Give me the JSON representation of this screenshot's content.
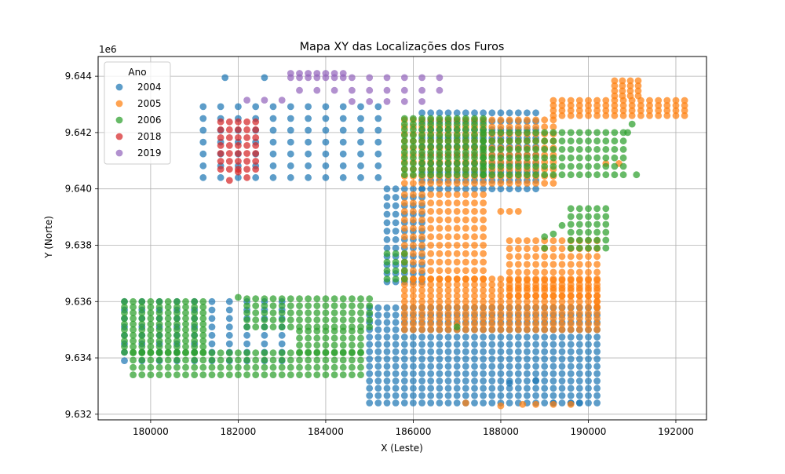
{
  "chart_data": {
    "type": "scatter",
    "title": "Mapa XY das Localizações dos Furos",
    "xlabel": "X (Leste)",
    "ylabel": "Y (Norte)",
    "y_offset_text": "1e6",
    "xlim": [
      178800,
      192700
    ],
    "ylim": [
      9631800,
      9644700
    ],
    "x_ticks": [
      180000,
      182000,
      184000,
      186000,
      188000,
      190000,
      192000
    ],
    "x_tick_labels": [
      "180000",
      "182000",
      "184000",
      "186000",
      "188000",
      "190000",
      "192000"
    ],
    "y_ticks": [
      9632000,
      9634000,
      9636000,
      9638000,
      9640000,
      9642000,
      9644000
    ],
    "y_tick_labels": [
      "9.632",
      "9.634",
      "9.636",
      "9.638",
      "9.640",
      "9.642",
      "9.644"
    ],
    "grid": true,
    "legend": {
      "title": "Ano",
      "placement": "upper-left"
    },
    "series": [
      {
        "name": "2004",
        "color": "#1f77b4",
        "regions": [
          {
            "x": [
              181200,
              185200
            ],
            "y": [
              9640400,
              9643200
            ],
            "dx": 400,
            "dy": 420
          },
          {
            "x": [
              185400,
              186200
            ],
            "y": [
              9636700,
              9640000
            ],
            "dx": 200,
            "dy": 300
          },
          {
            "x": [
              185000,
              190200
            ],
            "y": [
              9632400,
              9636000
            ],
            "dx": 200,
            "dy": 260
          },
          {
            "x": [
              186200,
              188800
            ],
            "y": [
              9640000,
              9642800
            ],
            "dx": 200,
            "dy": 300
          },
          {
            "x": [
              179400,
              183200
            ],
            "y": [
              9633900,
              9636000
            ],
            "dx": 400,
            "dy": 300
          }
        ],
        "points": [
          [
            181700,
            9643950
          ],
          [
            182600,
            9643950
          ],
          [
            188200,
            9633100
          ],
          [
            188800,
            9633200
          ],
          [
            189200,
            9632400
          ],
          [
            189600,
            9632400
          ],
          [
            189800,
            9632400
          ]
        ]
      },
      {
        "name": "2005",
        "color": "#ff7f0e",
        "regions": [
          {
            "x": [
              185800,
              190300
            ],
            "y": [
              9635000,
              9636800
            ],
            "dx": 200,
            "dy": 200
          },
          {
            "x": [
              185800,
              187600
            ],
            "y": [
              9636800,
              9640000
            ],
            "dx": 200,
            "dy": 300
          },
          {
            "x": [
              188200,
              190200
            ],
            "y": [
              9636200,
              9638200
            ],
            "dx": 200,
            "dy": 280
          },
          {
            "x": [
              185800,
              189200
            ],
            "y": [
              9640200,
              9642600
            ],
            "dx": 200,
            "dy": 250
          },
          {
            "x": [
              189200,
              192200
            ],
            "y": [
              9642600,
              9643300
            ],
            "dx": 200,
            "dy": 180
          },
          {
            "x": [
              190600,
              191300
            ],
            "y": [
              9643300,
              9644000
            ],
            "dx": 180,
            "dy": 180
          }
        ],
        "points": [
          [
            187200,
            9632400
          ],
          [
            188000,
            9632300
          ],
          [
            188500,
            9632350
          ],
          [
            188800,
            9632350
          ],
          [
            189200,
            9632350
          ],
          [
            189600,
            9632350
          ],
          [
            190200,
            9636000
          ],
          [
            190200,
            9635800
          ],
          [
            188000,
            9639200
          ],
          [
            188200,
            9639200
          ],
          [
            188400,
            9639200
          ],
          [
            190400,
            9640900
          ],
          [
            190700,
            9640900
          ]
        ]
      },
      {
        "name": "2006",
        "color": "#2ca02c",
        "regions": [
          {
            "x": [
              179400,
              181200
            ],
            "y": [
              9634200,
              9636100
            ],
            "dx": 200,
            "dy": 200
          },
          {
            "x": [
              179600,
              184800
            ],
            "y": [
              9633400,
              9634200
            ],
            "dx": 200,
            "dy": 260
          },
          {
            "x": [
              182200,
              185000
            ],
            "y": [
              9635100,
              9636100
            ],
            "dx": 200,
            "dy": 250
          },
          {
            "x": [
              183400,
              184800
            ],
            "y": [
              9634200,
              9635100
            ],
            "dx": 200,
            "dy": 250
          },
          {
            "x": [
              185800,
              187600
            ],
            "y": [
              9640500,
              9642500
            ],
            "dx": 200,
            "dy": 200
          },
          {
            "x": [
              187600,
              190800
            ],
            "y": [
              9640500,
              9642200
            ],
            "dx": 200,
            "dy": 300
          },
          {
            "x": [
              189600,
              190400
            ],
            "y": [
              9637900,
              9639300
            ],
            "dx": 200,
            "dy": 280
          },
          {
            "x": [
              185400,
              185800
            ],
            "y": [
              9636800,
              9637900
            ],
            "dx": 200,
            "dy": 300
          }
        ],
        "points": [
          [
            182000,
            9636150
          ],
          [
            187000,
            9635100
          ],
          [
            189000,
            9638300
          ],
          [
            189200,
            9638400
          ],
          [
            189400,
            9638700
          ],
          [
            189000,
            9637900
          ],
          [
            191100,
            9640500
          ],
          [
            190900,
            9642000
          ],
          [
            191000,
            9642300
          ]
        ]
      },
      {
        "name": "2018",
        "color": "#d62728",
        "regions": [
          {
            "x": [
              181600,
              182400
            ],
            "y": [
              9640700,
              9642500
            ],
            "dx": 200,
            "dy": 280
          }
        ],
        "points": [
          [
            181800,
            9640300
          ],
          [
            182200,
            9640400
          ],
          [
            182000,
            9640600
          ]
        ]
      },
      {
        "name": "2019",
        "color": "#9467bd",
        "regions": [],
        "points": [
          [
            182200,
            9643150
          ],
          [
            182600,
            9643150
          ],
          [
            183000,
            9643150
          ],
          [
            183200,
            9644100
          ],
          [
            183400,
            9644100
          ],
          [
            183600,
            9644100
          ],
          [
            183800,
            9644100
          ],
          [
            184000,
            9644100
          ],
          [
            184200,
            9644100
          ],
          [
            184400,
            9644100
          ],
          [
            183200,
            9643950
          ],
          [
            183400,
            9643950
          ],
          [
            183600,
            9643950
          ],
          [
            183800,
            9643950
          ],
          [
            184000,
            9643950
          ],
          [
            184200,
            9643950
          ],
          [
            184400,
            9643950
          ],
          [
            184600,
            9643950
          ],
          [
            185000,
            9643950
          ],
          [
            185400,
            9643950
          ],
          [
            185800,
            9643950
          ],
          [
            186200,
            9643950
          ],
          [
            186600,
            9643950
          ],
          [
            183400,
            9643500
          ],
          [
            183800,
            9643500
          ],
          [
            184200,
            9643500
          ],
          [
            184600,
            9643500
          ],
          [
            185000,
            9643500
          ],
          [
            185400,
            9643500
          ],
          [
            185800,
            9643500
          ],
          [
            186200,
            9643500
          ],
          [
            186600,
            9643500
          ],
          [
            184600,
            9643100
          ],
          [
            185000,
            9643100
          ],
          [
            185400,
            9643100
          ],
          [
            185800,
            9643100
          ],
          [
            186200,
            9643100
          ]
        ]
      }
    ]
  }
}
